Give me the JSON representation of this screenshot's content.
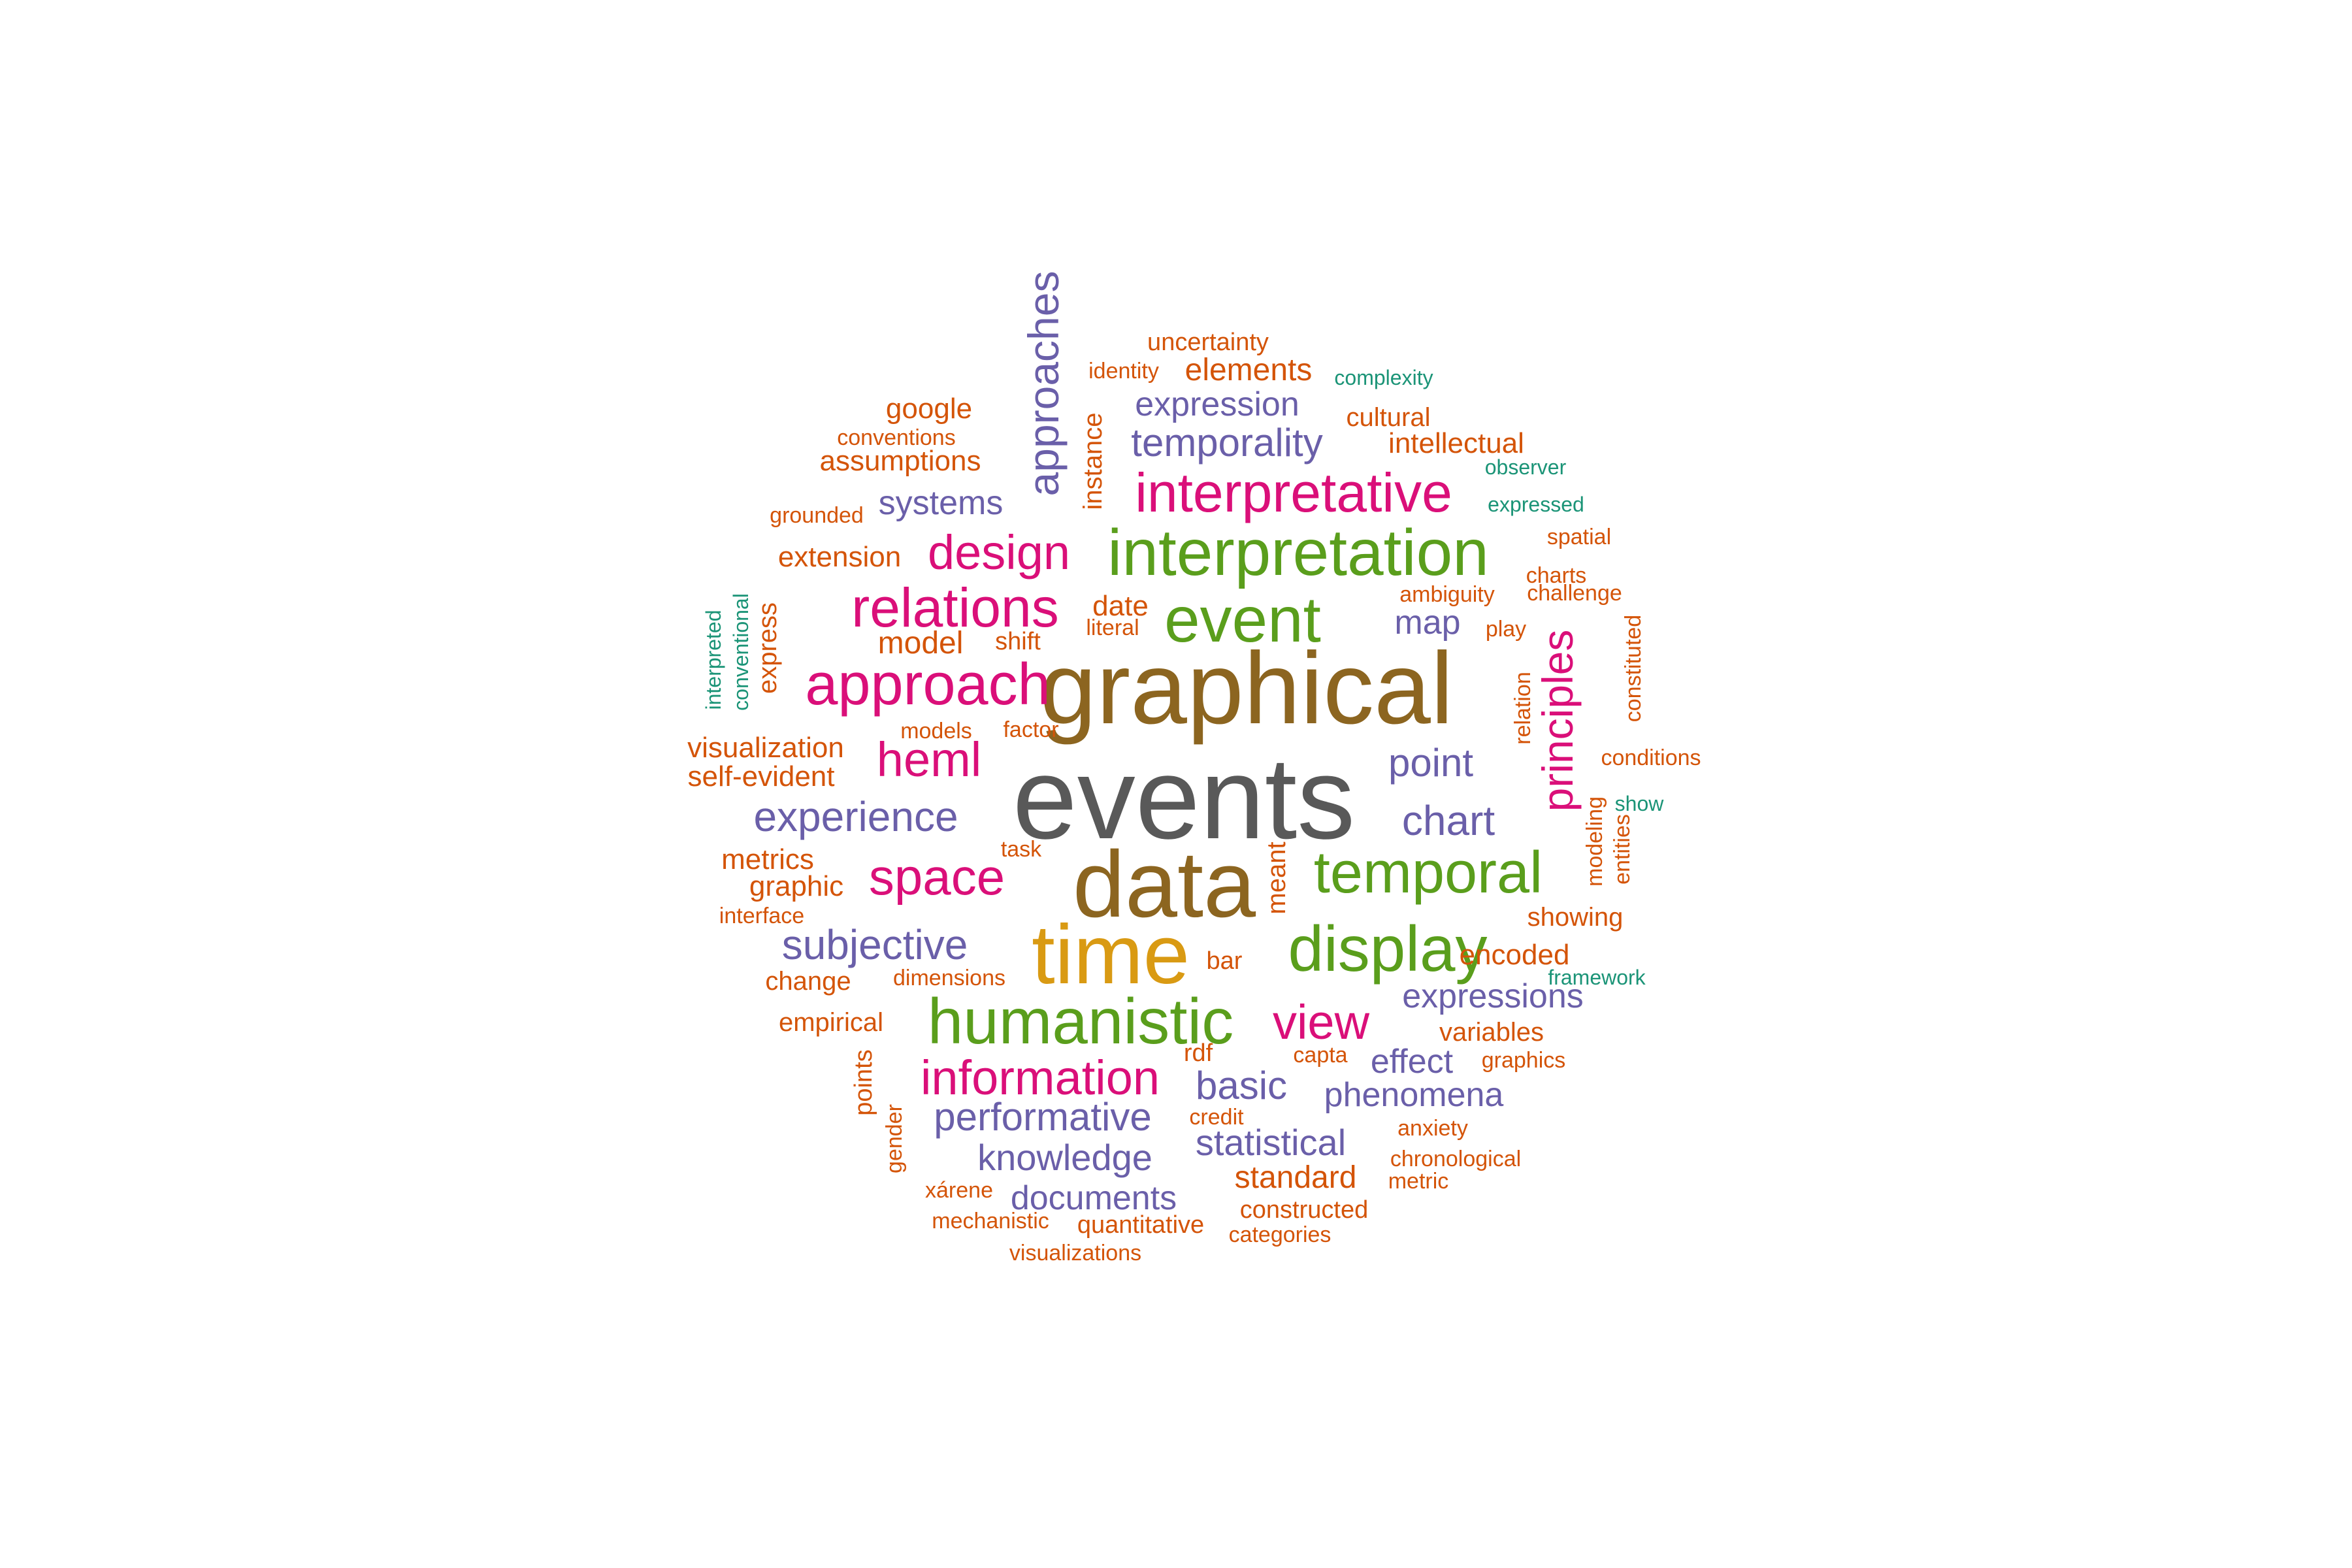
{
  "palette": {
    "g1": "#595959",
    "g2": "#8c6520",
    "g3": "#d99a13",
    "g4": "#5a9e1c",
    "g5": "#da0f79",
    "g6": "#6a5fa9",
    "g7": "#d45408",
    "g8": "#1b9477"
  },
  "words": [
    {
      "text": "events",
      "weight": 100,
      "group": "g1"
    },
    {
      "text": "graphical",
      "weight": 86,
      "group": "g2"
    },
    {
      "text": "data",
      "weight": 80,
      "group": "g2"
    },
    {
      "text": "time",
      "weight": 72,
      "group": "g3"
    },
    {
      "text": "interpretation",
      "weight": 56,
      "group": "g4"
    },
    {
      "text": "humanistic",
      "weight": 55,
      "group": "g4"
    },
    {
      "text": "event",
      "weight": 55,
      "group": "g4"
    },
    {
      "text": "display",
      "weight": 55,
      "group": "g4"
    },
    {
      "text": "temporal",
      "weight": 51,
      "group": "g4"
    },
    {
      "text": "approach",
      "weight": 51,
      "group": "g5"
    },
    {
      "text": "relations",
      "weight": 47,
      "group": "g5"
    },
    {
      "text": "interpretative",
      "weight": 47,
      "group": "g5"
    },
    {
      "text": "space",
      "weight": 44,
      "group": "g5"
    },
    {
      "text": "information",
      "weight": 41,
      "group": "g5"
    },
    {
      "text": "view",
      "weight": 41,
      "group": "g5"
    },
    {
      "text": "design",
      "weight": 41,
      "group": "g5"
    },
    {
      "text": "heml",
      "weight": 41,
      "group": "g5"
    },
    {
      "text": "principles",
      "weight": 38,
      "group": "g5"
    },
    {
      "text": "approaches",
      "weight": 38,
      "group": "g6"
    },
    {
      "text": "subjective",
      "weight": 36,
      "group": "g6"
    },
    {
      "text": "experience",
      "weight": 36,
      "group": "g6"
    },
    {
      "text": "chart",
      "weight": 36,
      "group": "g6"
    },
    {
      "text": "performative",
      "weight": 34,
      "group": "g6"
    },
    {
      "text": "temporality",
      "weight": 34,
      "group": "g6"
    },
    {
      "text": "point",
      "weight": 34,
      "group": "g6"
    },
    {
      "text": "basic",
      "weight": 34,
      "group": "g6"
    },
    {
      "text": "knowledge",
      "weight": 31,
      "group": "g6"
    },
    {
      "text": "statistical",
      "weight": 31,
      "group": "g6"
    },
    {
      "text": "phenomena",
      "weight": 29,
      "group": "g6"
    },
    {
      "text": "expression",
      "weight": 29,
      "group": "g6"
    },
    {
      "text": "expressions",
      "weight": 29,
      "group": "g6"
    },
    {
      "text": "documents",
      "weight": 29,
      "group": "g6"
    },
    {
      "text": "systems",
      "weight": 29,
      "group": "g6"
    },
    {
      "text": "map",
      "weight": 29,
      "group": "g6"
    },
    {
      "text": "effect",
      "weight": 29,
      "group": "g6"
    },
    {
      "text": "standard",
      "weight": 27,
      "group": "g7"
    },
    {
      "text": "model",
      "weight": 27,
      "group": "g7"
    },
    {
      "text": "elements",
      "weight": 27,
      "group": "g7"
    },
    {
      "text": "assumptions",
      "weight": 25,
      "group": "g7"
    },
    {
      "text": "visualization",
      "weight": 25,
      "group": "g7"
    },
    {
      "text": "self-evident",
      "weight": 25,
      "group": "g7"
    },
    {
      "text": "google",
      "weight": 25,
      "group": "g7"
    },
    {
      "text": "intellectual",
      "weight": 25,
      "group": "g7"
    },
    {
      "text": "date",
      "weight": 25,
      "group": "g7"
    },
    {
      "text": "metrics",
      "weight": 25,
      "group": "g7"
    },
    {
      "text": "graphic",
      "weight": 25,
      "group": "g7"
    },
    {
      "text": "encoded",
      "weight": 25,
      "group": "g7"
    },
    {
      "text": "extension",
      "weight": 25,
      "group": "g7"
    },
    {
      "text": "change",
      "weight": 23,
      "group": "g7"
    },
    {
      "text": "empirical",
      "weight": 23,
      "group": "g7"
    },
    {
      "text": "variables",
      "weight": 23,
      "group": "g7"
    },
    {
      "text": "showing",
      "weight": 23,
      "group": "g7"
    },
    {
      "text": "instance",
      "weight": 23,
      "group": "g7"
    },
    {
      "text": "cultural",
      "weight": 23,
      "group": "g7"
    },
    {
      "text": "express",
      "weight": 23,
      "group": "g7"
    },
    {
      "text": "meant",
      "weight": 23,
      "group": "g7"
    },
    {
      "text": "shift",
      "weight": 22,
      "group": "g7"
    },
    {
      "text": "rdf",
      "weight": 22,
      "group": "g7"
    },
    {
      "text": "bar",
      "weight": 22,
      "group": "g7"
    },
    {
      "text": "constructed",
      "weight": 22,
      "group": "g7"
    },
    {
      "text": "uncertainty",
      "weight": 22,
      "group": "g7"
    },
    {
      "text": "quantitative",
      "weight": 22,
      "group": "g7"
    },
    {
      "text": "points",
      "weight": 22,
      "group": "g7"
    },
    {
      "text": "play",
      "weight": 20,
      "group": "g7"
    },
    {
      "text": "anxiety",
      "weight": 20,
      "group": "g7"
    },
    {
      "text": "ambiguity",
      "weight": 20,
      "group": "g7"
    },
    {
      "text": "grounded",
      "weight": 20,
      "group": "g7"
    },
    {
      "text": "visualizations",
      "weight": 20,
      "group": "g7"
    },
    {
      "text": "credit",
      "weight": 20,
      "group": "g7"
    },
    {
      "text": "conventions",
      "weight": 20,
      "group": "g7"
    },
    {
      "text": "chronological",
      "weight": 20,
      "group": "g7"
    },
    {
      "text": "dimensions",
      "weight": 20,
      "group": "g7"
    },
    {
      "text": "mechanistic",
      "weight": 20,
      "group": "g7"
    },
    {
      "text": "categories",
      "weight": 20,
      "group": "g7"
    },
    {
      "text": "interface",
      "weight": 20,
      "group": "g7"
    },
    {
      "text": "xárene",
      "weight": 20,
      "group": "g7"
    },
    {
      "text": "gender",
      "weight": 20,
      "group": "g7"
    },
    {
      "text": "challenge",
      "weight": 20,
      "group": "g7"
    },
    {
      "text": "conditions",
      "weight": 20,
      "group": "g7"
    },
    {
      "text": "graphics",
      "weight": 20,
      "group": "g7"
    },
    {
      "text": "spatial",
      "weight": 20,
      "group": "g7"
    },
    {
      "text": "charts",
      "weight": 20,
      "group": "g7"
    },
    {
      "text": "identity",
      "weight": 20,
      "group": "g7"
    },
    {
      "text": "literal",
      "weight": 20,
      "group": "g7"
    },
    {
      "text": "factor",
      "weight": 20,
      "group": "g7"
    },
    {
      "text": "models",
      "weight": 20,
      "group": "g7"
    },
    {
      "text": "capta",
      "weight": 20,
      "group": "g7"
    },
    {
      "text": "task",
      "weight": 20,
      "group": "g7"
    },
    {
      "text": "metric",
      "weight": 20,
      "group": "g7"
    },
    {
      "text": "relation",
      "weight": 20,
      "group": "g7"
    },
    {
      "text": "modeling",
      "weight": 20,
      "group": "g7"
    },
    {
      "text": "entities",
      "weight": 20,
      "group": "g7"
    },
    {
      "text": "constituted",
      "weight": 20,
      "group": "g7"
    },
    {
      "text": "complexity",
      "weight": 19,
      "group": "g8"
    },
    {
      "text": "observer",
      "weight": 19,
      "group": "g8"
    },
    {
      "text": "expressed",
      "weight": 19,
      "group": "g8"
    },
    {
      "text": "framework",
      "weight": 19,
      "group": "g8"
    },
    {
      "text": "show",
      "weight": 19,
      "group": "g8"
    },
    {
      "text": "conventional",
      "weight": 19,
      "group": "g8"
    },
    {
      "text": "interpreted",
      "weight": 19,
      "group": "g8"
    }
  ]
}
